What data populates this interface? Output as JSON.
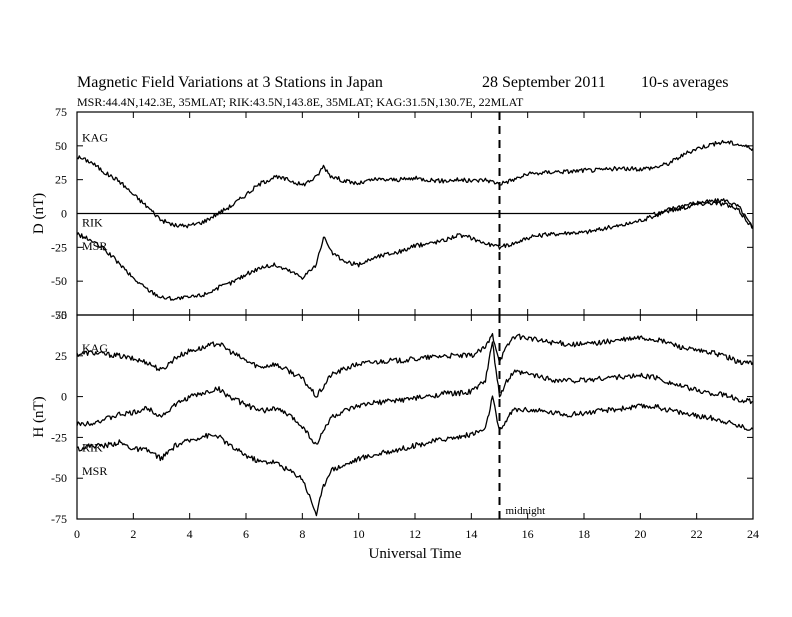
{
  "header": {
    "title": "Magnetic Field Variations at 3 Stations in Japan",
    "date": "28 September 2011",
    "averaging": "10-s averages",
    "stations_line": "MSR:44.4N,142.3E, 35MLAT;   RIK:43.5N,143.8E, 35MLAT;   KAG:31.5N,130.7E, 22MLAT"
  },
  "colors": {
    "line": "#000000",
    "background": "#ffffff"
  },
  "chart_data": [
    {
      "type": "line",
      "panel": "D",
      "ylabel": "D (nT)",
      "ylim": [
        -75,
        75
      ],
      "yticks": [
        -75,
        -50,
        -25,
        0,
        25,
        50,
        75
      ],
      "xlim": [
        0,
        24
      ],
      "xticks": [
        0,
        2,
        4,
        6,
        8,
        10,
        12,
        14,
        16,
        18,
        20,
        22,
        24
      ],
      "series": [
        {
          "name": "KAG",
          "x": [
            0,
            0.5,
            1,
            1.5,
            2,
            2.5,
            3,
            3.5,
            4,
            4.5,
            5,
            5.5,
            6,
            6.5,
            7,
            7.5,
            8,
            8.5,
            8.75,
            9,
            9.5,
            10,
            10.5,
            11,
            11.5,
            12,
            12.5,
            13,
            13.5,
            14,
            14.5,
            15,
            15.5,
            16,
            16.5,
            17,
            17.5,
            18,
            18.5,
            19,
            19.5,
            20,
            20.5,
            21,
            21.5,
            22,
            22.5,
            23,
            23.5,
            24
          ],
          "values": [
            42,
            38,
            30,
            24,
            14,
            5,
            -5,
            -9,
            -9,
            -6,
            0,
            6,
            14,
            22,
            27,
            25,
            21,
            27,
            35,
            28,
            24,
            22,
            25,
            25,
            25,
            26,
            25,
            24,
            25,
            24,
            25,
            22,
            25,
            29,
            30,
            31,
            31,
            32,
            32,
            33,
            33,
            33,
            34,
            37,
            43,
            48,
            51,
            53,
            51,
            48
          ]
        },
        {
          "name": "RIK",
          "x": [
            0,
            20.5,
            21,
            21.5,
            22,
            22.5,
            23,
            23.5,
            24
          ],
          "values": [
            0,
            0,
            2,
            4,
            7,
            8,
            7,
            2,
            -11
          ]
        },
        {
          "name": "MSR",
          "x": [
            0,
            0.5,
            1,
            1.5,
            2,
            2.5,
            3,
            3.5,
            4,
            4.5,
            5,
            5.5,
            6,
            6.5,
            7,
            7.5,
            8,
            8.5,
            8.75,
            9,
            9.5,
            10,
            10.5,
            11,
            11.5,
            12,
            12.5,
            13,
            13.5,
            14,
            14.5,
            15,
            15.5,
            16,
            16.5,
            17,
            17.5,
            18,
            18.5,
            19,
            19.5,
            20,
            20.5,
            21,
            21.5,
            22,
            22.5,
            23,
            23.5,
            24
          ],
          "values": [
            -15,
            -20,
            -27,
            -37,
            -48,
            -56,
            -62,
            -63,
            -62,
            -60,
            -55,
            -51,
            -45,
            -40,
            -38,
            -42,
            -47,
            -38,
            -17,
            -28,
            -36,
            -38,
            -33,
            -30,
            -28,
            -24,
            -22,
            -20,
            -16,
            -18,
            -22,
            -25,
            -22,
            -18,
            -16,
            -15,
            -14,
            -14,
            -12,
            -10,
            -8,
            -5,
            -2,
            3,
            6,
            8,
            9,
            10,
            5,
            -11
          ]
        }
      ],
      "vline_x": 15
    },
    {
      "type": "line",
      "panel": "H",
      "ylabel": "H (nT)",
      "xlabel": "Universal Time",
      "ylim": [
        -75,
        50
      ],
      "yticks": [
        -75,
        -50,
        -25,
        0,
        25,
        50
      ],
      "xlim": [
        0,
        24
      ],
      "xticks": [
        0,
        2,
        4,
        6,
        8,
        10,
        12,
        14,
        16,
        18,
        20,
        22,
        24
      ],
      "series": [
        {
          "name": "KAG",
          "x": [
            0,
            0.5,
            1,
            1.5,
            2,
            2.5,
            3,
            3.5,
            4,
            4.5,
            5,
            5.5,
            6,
            6.5,
            7,
            7.5,
            8,
            8.5,
            8.75,
            9,
            9.5,
            10,
            10.5,
            11,
            11.5,
            12,
            12.5,
            13,
            13.5,
            14,
            14.5,
            14.75,
            15,
            15.25,
            15.5,
            16,
            16.5,
            17,
            17.5,
            18,
            18.5,
            19,
            19.5,
            20,
            20.5,
            21,
            21.5,
            22,
            22.5,
            23,
            23.5,
            24
          ],
          "values": [
            26,
            27,
            26,
            25,
            23,
            21,
            16,
            24,
            28,
            30,
            33,
            27,
            22,
            18,
            20,
            16,
            11,
            0,
            6,
            13,
            17,
            20,
            21,
            22,
            22,
            23,
            24,
            25,
            25,
            25,
            30,
            38,
            22,
            30,
            37,
            36,
            34,
            33,
            32,
            32,
            33,
            34,
            35,
            36,
            35,
            33,
            30,
            28,
            27,
            25,
            21,
            21
          ]
        },
        {
          "name": "RIK",
          "x": [
            0,
            0.5,
            1,
            1.5,
            2,
            2.5,
            3,
            3.5,
            4,
            4.5,
            5,
            5.5,
            6,
            6.5,
            7,
            7.5,
            8,
            8.5,
            8.75,
            9,
            9.5,
            10,
            10.5,
            11,
            11.5,
            12,
            12.5,
            13,
            13.5,
            14,
            14.5,
            14.75,
            15,
            15.25,
            15.5,
            16,
            16.5,
            17,
            17.5,
            18,
            18.5,
            19,
            19.5,
            20,
            20.5,
            21,
            21.5,
            22,
            22.5,
            23,
            23.5,
            24
          ],
          "values": [
            -17,
            -16,
            -14,
            -11,
            -10,
            -7,
            -12,
            -5,
            0,
            2,
            5,
            -1,
            -5,
            -9,
            -7,
            -11,
            -18,
            -30,
            -21,
            -13,
            -9,
            -6,
            -4,
            -3,
            -2,
            -1,
            0,
            2,
            2,
            3,
            10,
            33,
            0,
            9,
            15,
            14,
            12,
            10,
            10,
            10,
            11,
            12,
            12,
            13,
            12,
            9,
            6,
            4,
            2,
            1,
            -2,
            -3
          ]
        },
        {
          "name": "MSR",
          "x": [
            0,
            0.5,
            1,
            1.5,
            2,
            2.5,
            3,
            3.5,
            4,
            4.5,
            5,
            5.5,
            6,
            6.5,
            7,
            7.5,
            8,
            8.5,
            8.75,
            9,
            9.5,
            10,
            10.5,
            11,
            11.5,
            12,
            12.5,
            13,
            13.5,
            14,
            14.5,
            14.75,
            15,
            15.25,
            15.5,
            16,
            16.5,
            17,
            17.5,
            18,
            18.5,
            19,
            19.5,
            20,
            20.5,
            21,
            21.5,
            22,
            22.5,
            23,
            23.5,
            24
          ],
          "values": [
            -32,
            -30,
            -30,
            -28,
            -32,
            -33,
            -38,
            -30,
            -27,
            -24,
            -24,
            -31,
            -36,
            -40,
            -40,
            -45,
            -50,
            -72,
            -55,
            -45,
            -42,
            -38,
            -36,
            -34,
            -32,
            -30,
            -28,
            -26,
            -25,
            -23,
            -20,
            0,
            -22,
            -14,
            -8,
            -8,
            -9,
            -10,
            -11,
            -10,
            -9,
            -8,
            -7,
            -6,
            -6,
            -8,
            -10,
            -12,
            -13,
            -15,
            -18,
            -20
          ]
        }
      ],
      "vline_x": 15,
      "annotation": "midnight"
    }
  ]
}
